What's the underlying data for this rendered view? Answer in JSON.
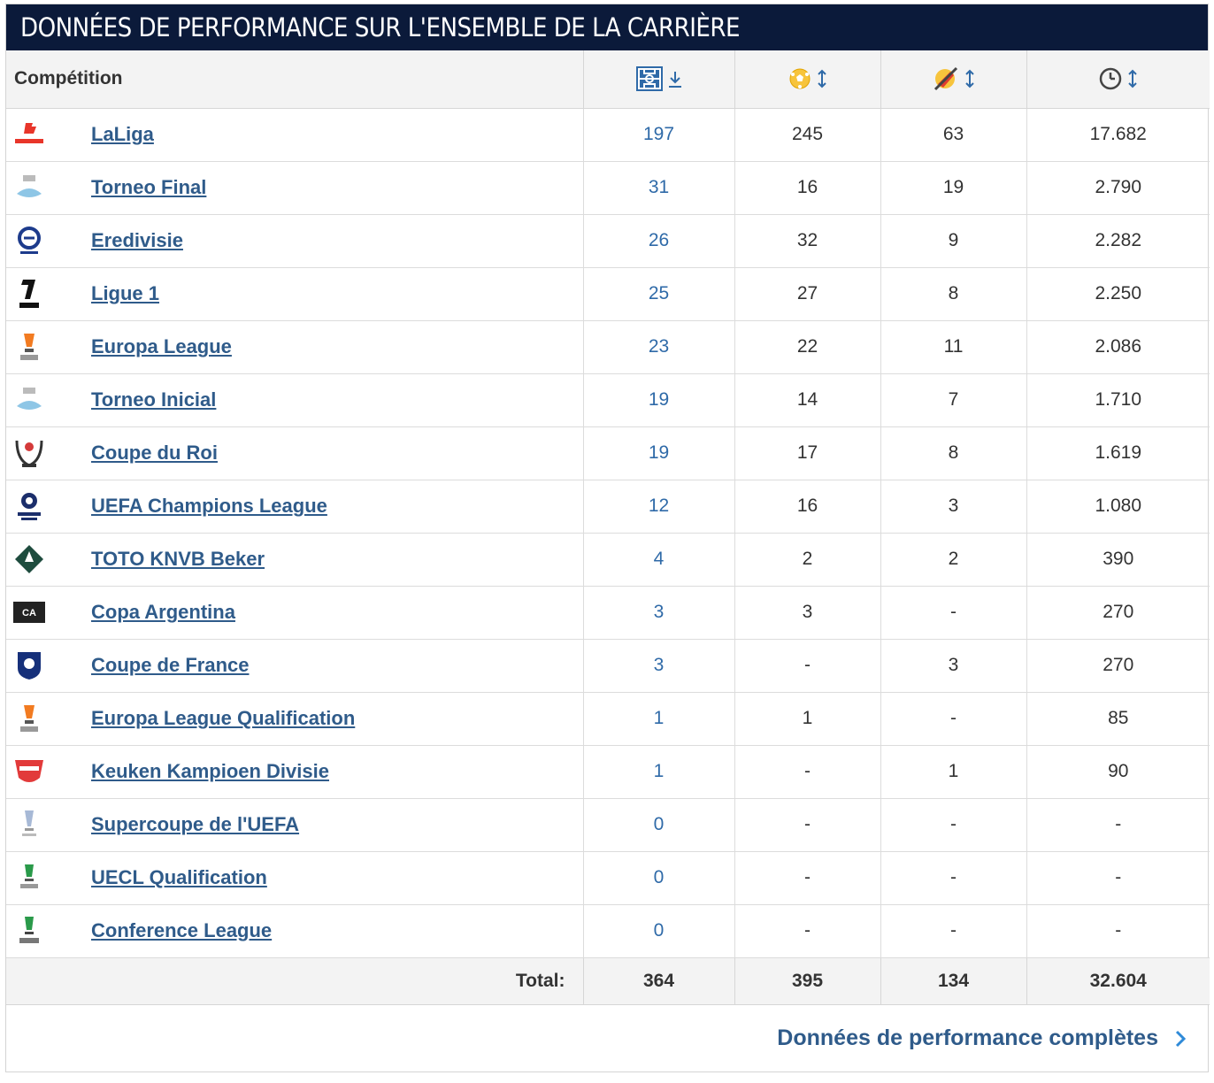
{
  "title": "Données de performance sur l'ensemble de la carrière",
  "header": {
    "competition_label": "Compétition",
    "columns": [
      {
        "icon": "appearances-pitch-icon",
        "sort": "sort-desc-icon"
      },
      {
        "icon": "goals-ball-icon",
        "sort": "sort-both-icon"
      },
      {
        "icon": "assists-boot-icon",
        "sort": "sort-both-icon"
      },
      {
        "icon": "minutes-clock-icon",
        "sort": "sort-both-icon"
      }
    ]
  },
  "rows": [
    {
      "logo": "laliga-logo-icon",
      "name": "LaLiga",
      "apps": "197",
      "goals": "245",
      "assists": "63",
      "minutes": "17.682"
    },
    {
      "logo": "torneo-final-logo-icon",
      "name": "Torneo Final",
      "apps": "31",
      "goals": "16",
      "assists": "19",
      "minutes": "2.790"
    },
    {
      "logo": "eredivisie-logo-icon",
      "name": "Eredivisie",
      "apps": "26",
      "goals": "32",
      "assists": "9",
      "minutes": "2.282"
    },
    {
      "logo": "ligue1-logo-icon",
      "name": "Ligue 1",
      "apps": "25",
      "goals": "27",
      "assists": "8",
      "minutes": "2.250"
    },
    {
      "logo": "europa-league-logo-icon",
      "name": "Europa League",
      "apps": "23",
      "goals": "22",
      "assists": "11",
      "minutes": "2.086"
    },
    {
      "logo": "torneo-inicial-logo-icon",
      "name": "Torneo Inicial",
      "apps": "19",
      "goals": "14",
      "assists": "7",
      "minutes": "1.710"
    },
    {
      "logo": "coupe-du-roi-logo-icon",
      "name": "Coupe du Roi",
      "apps": "19",
      "goals": "17",
      "assists": "8",
      "minutes": "1.619"
    },
    {
      "logo": "champions-league-logo-icon",
      "name": "UEFA Champions League",
      "apps": "12",
      "goals": "16",
      "assists": "3",
      "minutes": "1.080"
    },
    {
      "logo": "knvb-beker-logo-icon",
      "name": "TOTO KNVB Beker",
      "apps": "4",
      "goals": "2",
      "assists": "2",
      "minutes": "390"
    },
    {
      "logo": "copa-argentina-logo-icon",
      "name": "Copa Argentina",
      "apps": "3",
      "goals": "3",
      "assists": "-",
      "minutes": "270"
    },
    {
      "logo": "coupe-de-france-logo-icon",
      "name": "Coupe de France",
      "apps": "3",
      "goals": "-",
      "assists": "3",
      "minutes": "270"
    },
    {
      "logo": "europa-league-qualification-logo-icon",
      "name": "Europa League Qualification",
      "apps": "1",
      "goals": "1",
      "assists": "-",
      "minutes": "85"
    },
    {
      "logo": "keuken-kampioen-logo-icon",
      "name": "Keuken Kampioen Divisie",
      "apps": "1",
      "goals": "-",
      "assists": "1",
      "minutes": "90"
    },
    {
      "logo": "uefa-supercup-logo-icon",
      "name": "Supercoupe de l'UEFA",
      "apps": "0",
      "goals": "-",
      "assists": "-",
      "minutes": "-"
    },
    {
      "logo": "uecl-qualification-logo-icon",
      "name": "UECL Qualification",
      "apps": "0",
      "goals": "-",
      "assists": "-",
      "minutes": "-"
    },
    {
      "logo": "conference-league-logo-icon",
      "name": "Conference League",
      "apps": "0",
      "goals": "-",
      "assists": "-",
      "minutes": "-"
    }
  ],
  "total": {
    "label": "Total:",
    "apps": "364",
    "goals": "395",
    "assists": "134",
    "minutes": "32.604"
  },
  "footer_link": {
    "label": "Données de performance complètes",
    "icon": "chevron-right-icon"
  },
  "colors": {
    "title_bg": "#0b1a3a",
    "link": "#2f5b8a",
    "header_bg": "#f3f3f3"
  }
}
